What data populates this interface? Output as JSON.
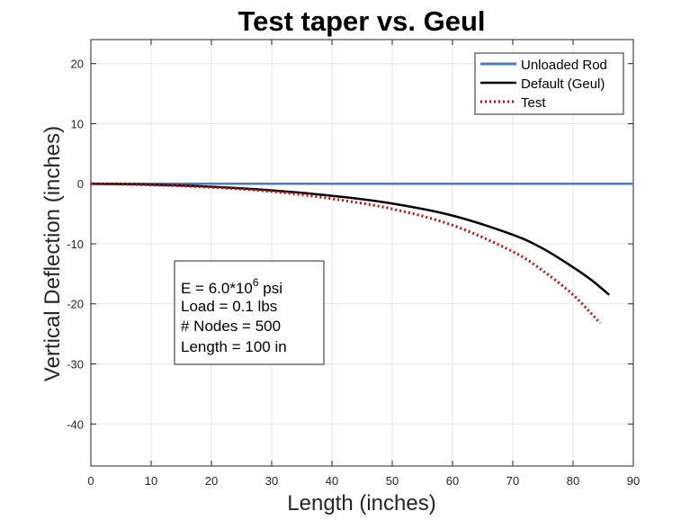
{
  "chart_data": {
    "type": "line",
    "title": "Test taper vs. Geul",
    "xlabel": "Length (inches)",
    "ylabel": "Vertical Deflection (inches)",
    "xlim": [
      0,
      90
    ],
    "ylim": [
      -47,
      24
    ],
    "xticks": [
      0,
      10,
      20,
      30,
      40,
      50,
      60,
      70,
      80,
      90
    ],
    "yticks": [
      20,
      10,
      0,
      -10,
      -20,
      -30,
      -40
    ],
    "grid": true,
    "legend_position": "top-right",
    "series": [
      {
        "name": "Unloaded Rod",
        "color": "#4a7bc4",
        "style": "solid",
        "x": [
          0,
          90
        ],
        "y": [
          0,
          0
        ]
      },
      {
        "name": "Default (Geul)",
        "color": "#000000",
        "style": "solid",
        "x": [
          0,
          10,
          20,
          30,
          40,
          50,
          60,
          70,
          75,
          80,
          83,
          86
        ],
        "y": [
          0,
          -0.15,
          -0.5,
          -1.1,
          -2.0,
          -3.3,
          -5.3,
          -8.5,
          -10.8,
          -13.9,
          -16.0,
          -18.5
        ]
      },
      {
        "name": "Test",
        "color": "#dd0000",
        "style": "dotted",
        "x": [
          0,
          10,
          20,
          30,
          40,
          50,
          60,
          70,
          75,
          80,
          84.5
        ],
        "y": [
          0,
          -0.2,
          -0.6,
          -1.3,
          -2.5,
          -4.2,
          -6.9,
          -11.3,
          -14.5,
          -18.5,
          -23.2
        ]
      }
    ],
    "annotation": {
      "line1_prefix": "E = 6.0*10",
      "line1_sup": "6",
      "line1_suffix": " psi",
      "lines": [
        "Load = 0.1 lbs",
        "# Nodes = 500",
        "Length = 100 in"
      ]
    }
  }
}
